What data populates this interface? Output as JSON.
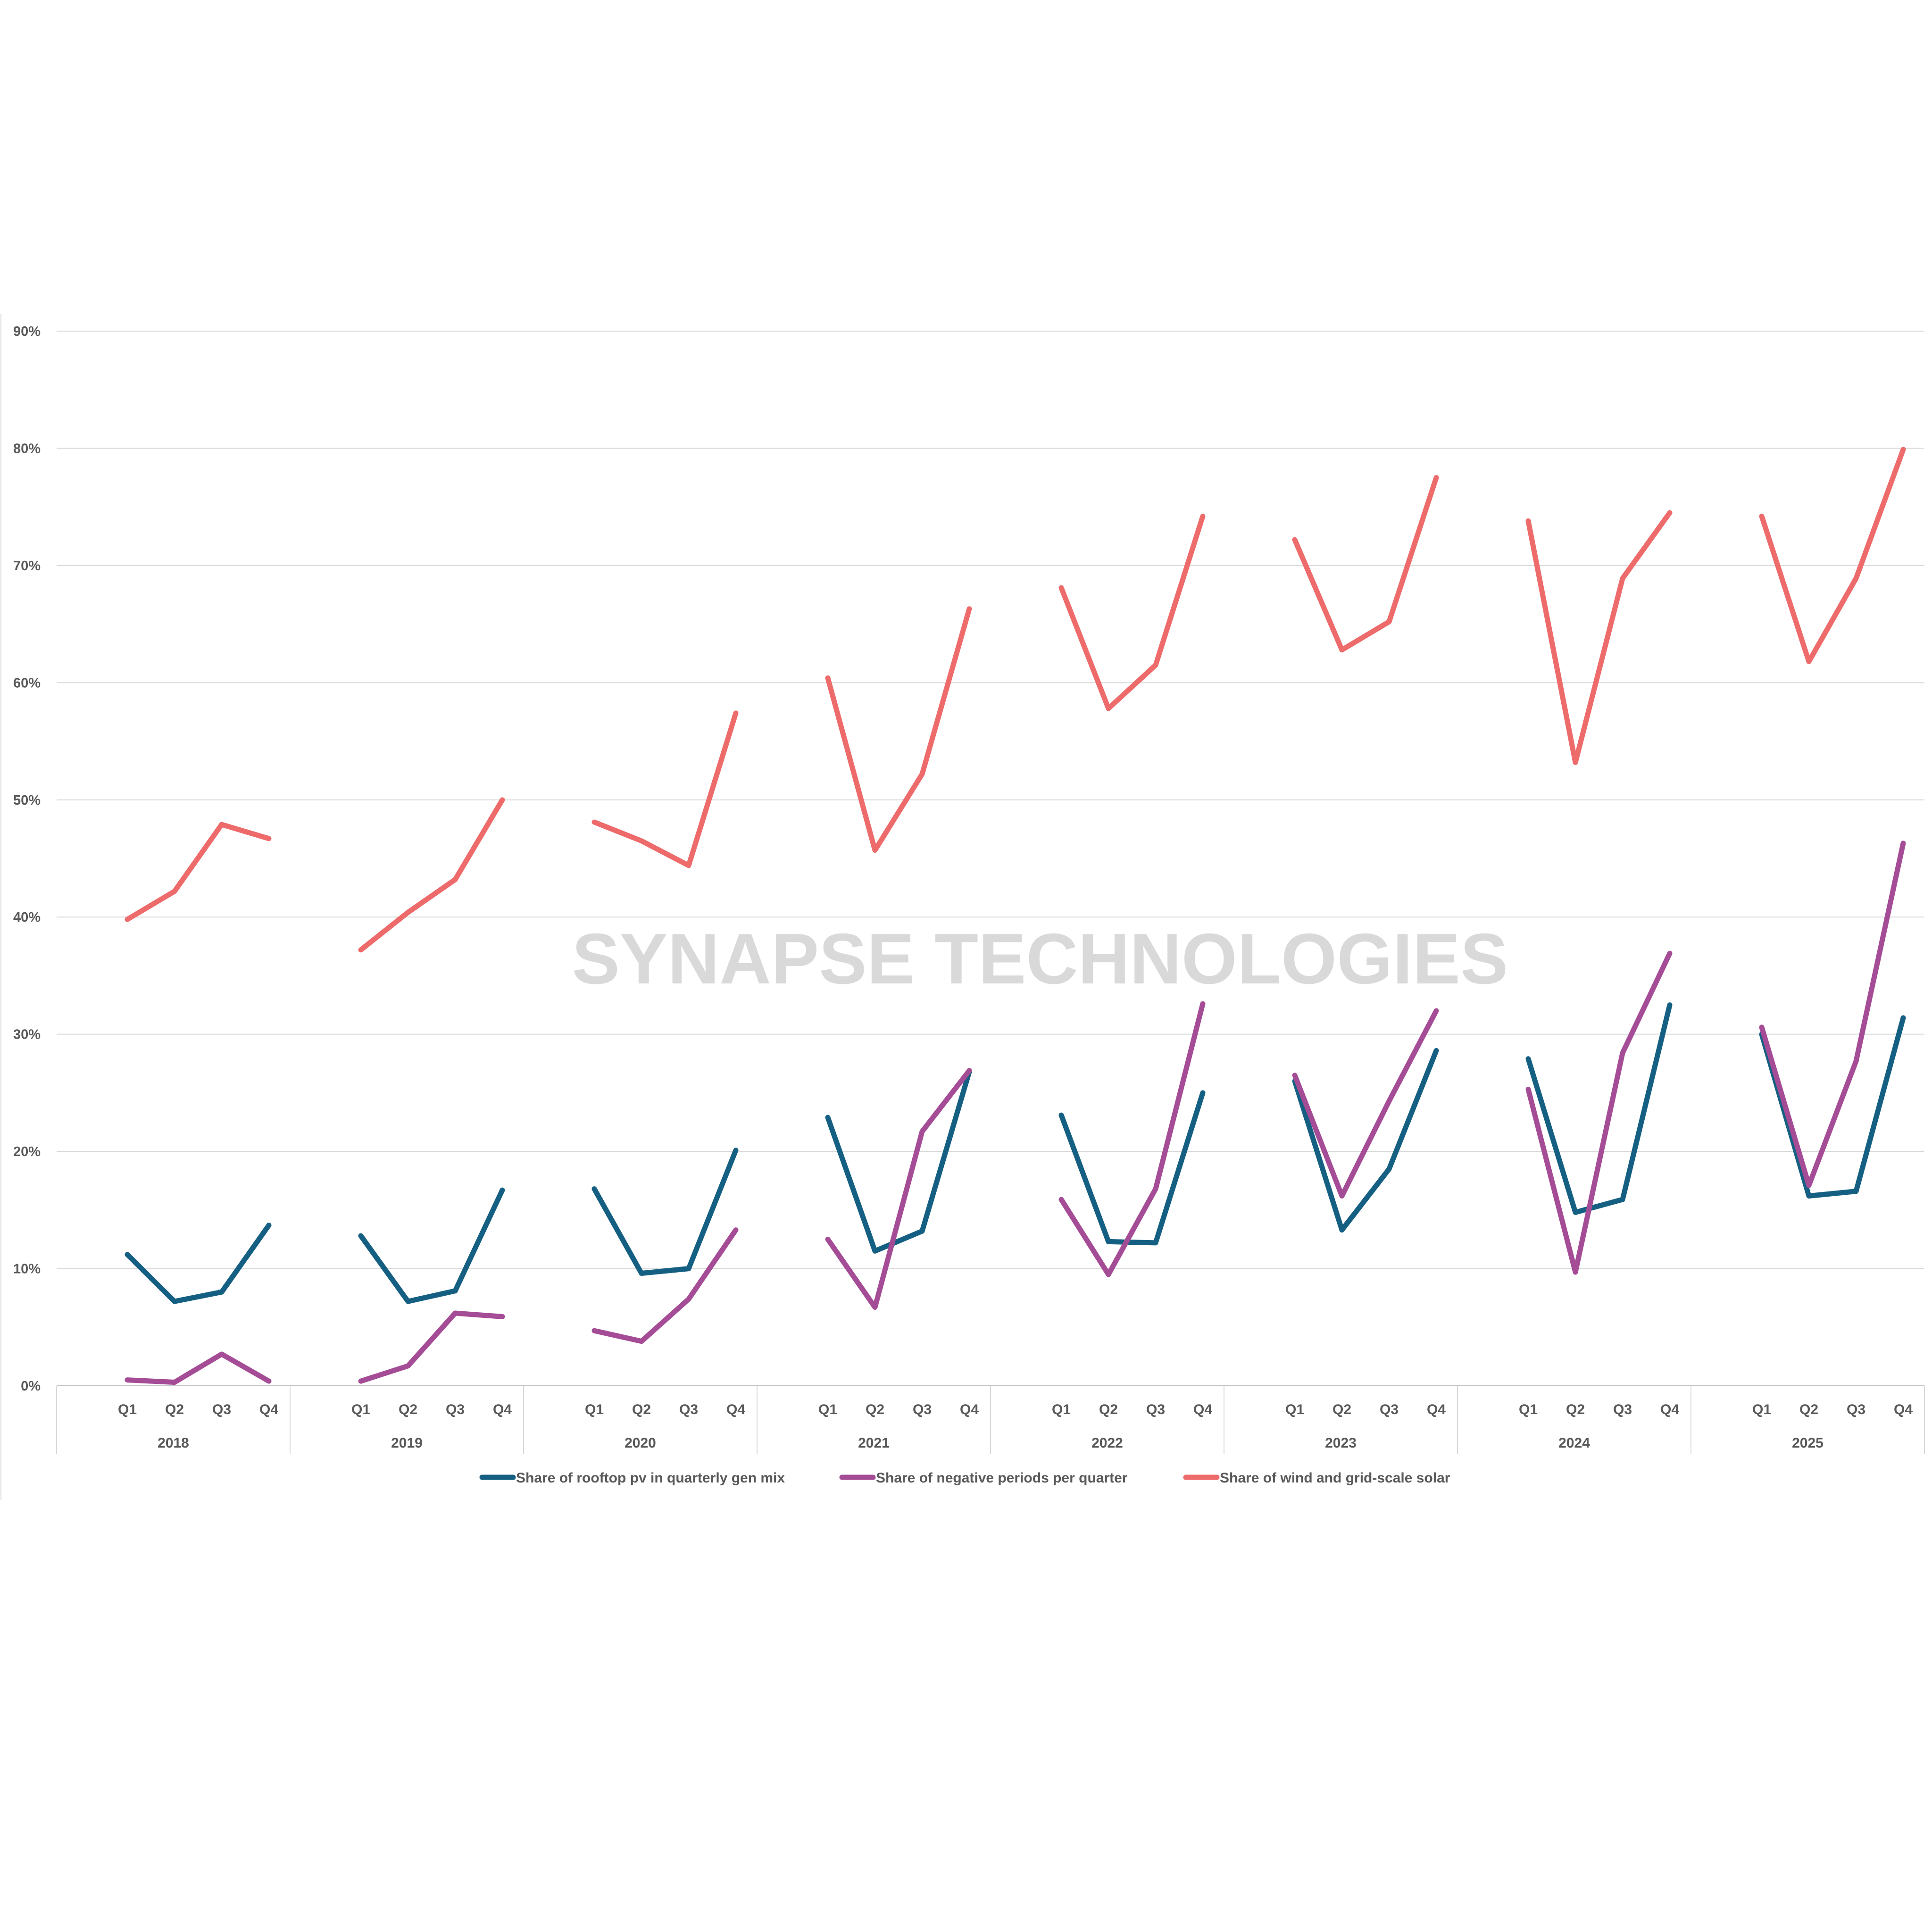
{
  "watermark": "SYNAPSE TECHNOLOGIES",
  "chart_data": {
    "type": "line",
    "title": "",
    "xlabel": "",
    "ylabel": "",
    "ylim": [
      0,
      90
    ],
    "y_ticks": [
      0,
      10,
      20,
      30,
      40,
      50,
      60,
      70,
      80,
      90
    ],
    "y_tick_labels": [
      "0%",
      "10%",
      "20%",
      "30%",
      "40%",
      "50%",
      "60%",
      "70%",
      "80%",
      "90%"
    ],
    "years": [
      "2018",
      "2019",
      "2020",
      "2021",
      "2022",
      "2023",
      "2024",
      "2025"
    ],
    "quarters": [
      "Q1",
      "Q2",
      "Q3",
      "Q4"
    ],
    "grid": true,
    "legend_position": "bottom",
    "series": [
      {
        "name": "Share of rooftop pv in quarterly gen mix",
        "color": "#156082",
        "values": [
          [
            11.2,
            7.2,
            8.0,
            13.7
          ],
          [
            12.8,
            7.2,
            8.1,
            16.7
          ],
          [
            16.8,
            9.6,
            10.0,
            20.1
          ],
          [
            22.9,
            11.5,
            13.2,
            26.8
          ],
          [
            23.1,
            12.3,
            12.2,
            25.0
          ],
          [
            26.0,
            13.3,
            18.5,
            28.6
          ],
          [
            27.9,
            14.8,
            15.9,
            32.5
          ],
          [
            30.0,
            16.2,
            16.6,
            31.4
          ]
        ]
      },
      {
        "name": "Share of negative periods per quarter",
        "color": "#A54C96",
        "values": [
          [
            0.5,
            0.3,
            2.7,
            0.4
          ],
          [
            0.4,
            1.7,
            6.2,
            5.9
          ],
          [
            4.7,
            3.8,
            7.4,
            13.3
          ],
          [
            12.5,
            6.7,
            21.7,
            26.9
          ],
          [
            15.9,
            9.5,
            16.8,
            32.6
          ],
          [
            26.5,
            16.2,
            24.3,
            32.0
          ],
          [
            25.3,
            9.7,
            28.4,
            36.9
          ],
          [
            30.6,
            17.1,
            27.7,
            46.3
          ]
        ]
      },
      {
        "name": "Share of wind and grid-scale solar",
        "color": "#EE6B6B",
        "values": [
          [
            39.8,
            42.2,
            47.9,
            46.7
          ],
          [
            37.2,
            40.4,
            43.2,
            50.0
          ],
          [
            48.1,
            46.5,
            44.4,
            57.4
          ],
          [
            60.4,
            45.7,
            52.2,
            66.3
          ],
          [
            68.1,
            57.8,
            61.5,
            74.2
          ],
          [
            72.2,
            62.8,
            65.2,
            77.5
          ],
          [
            73.8,
            53.2,
            68.9,
            74.5
          ],
          [
            74.2,
            61.8,
            68.9,
            79.9
          ]
        ]
      }
    ]
  }
}
